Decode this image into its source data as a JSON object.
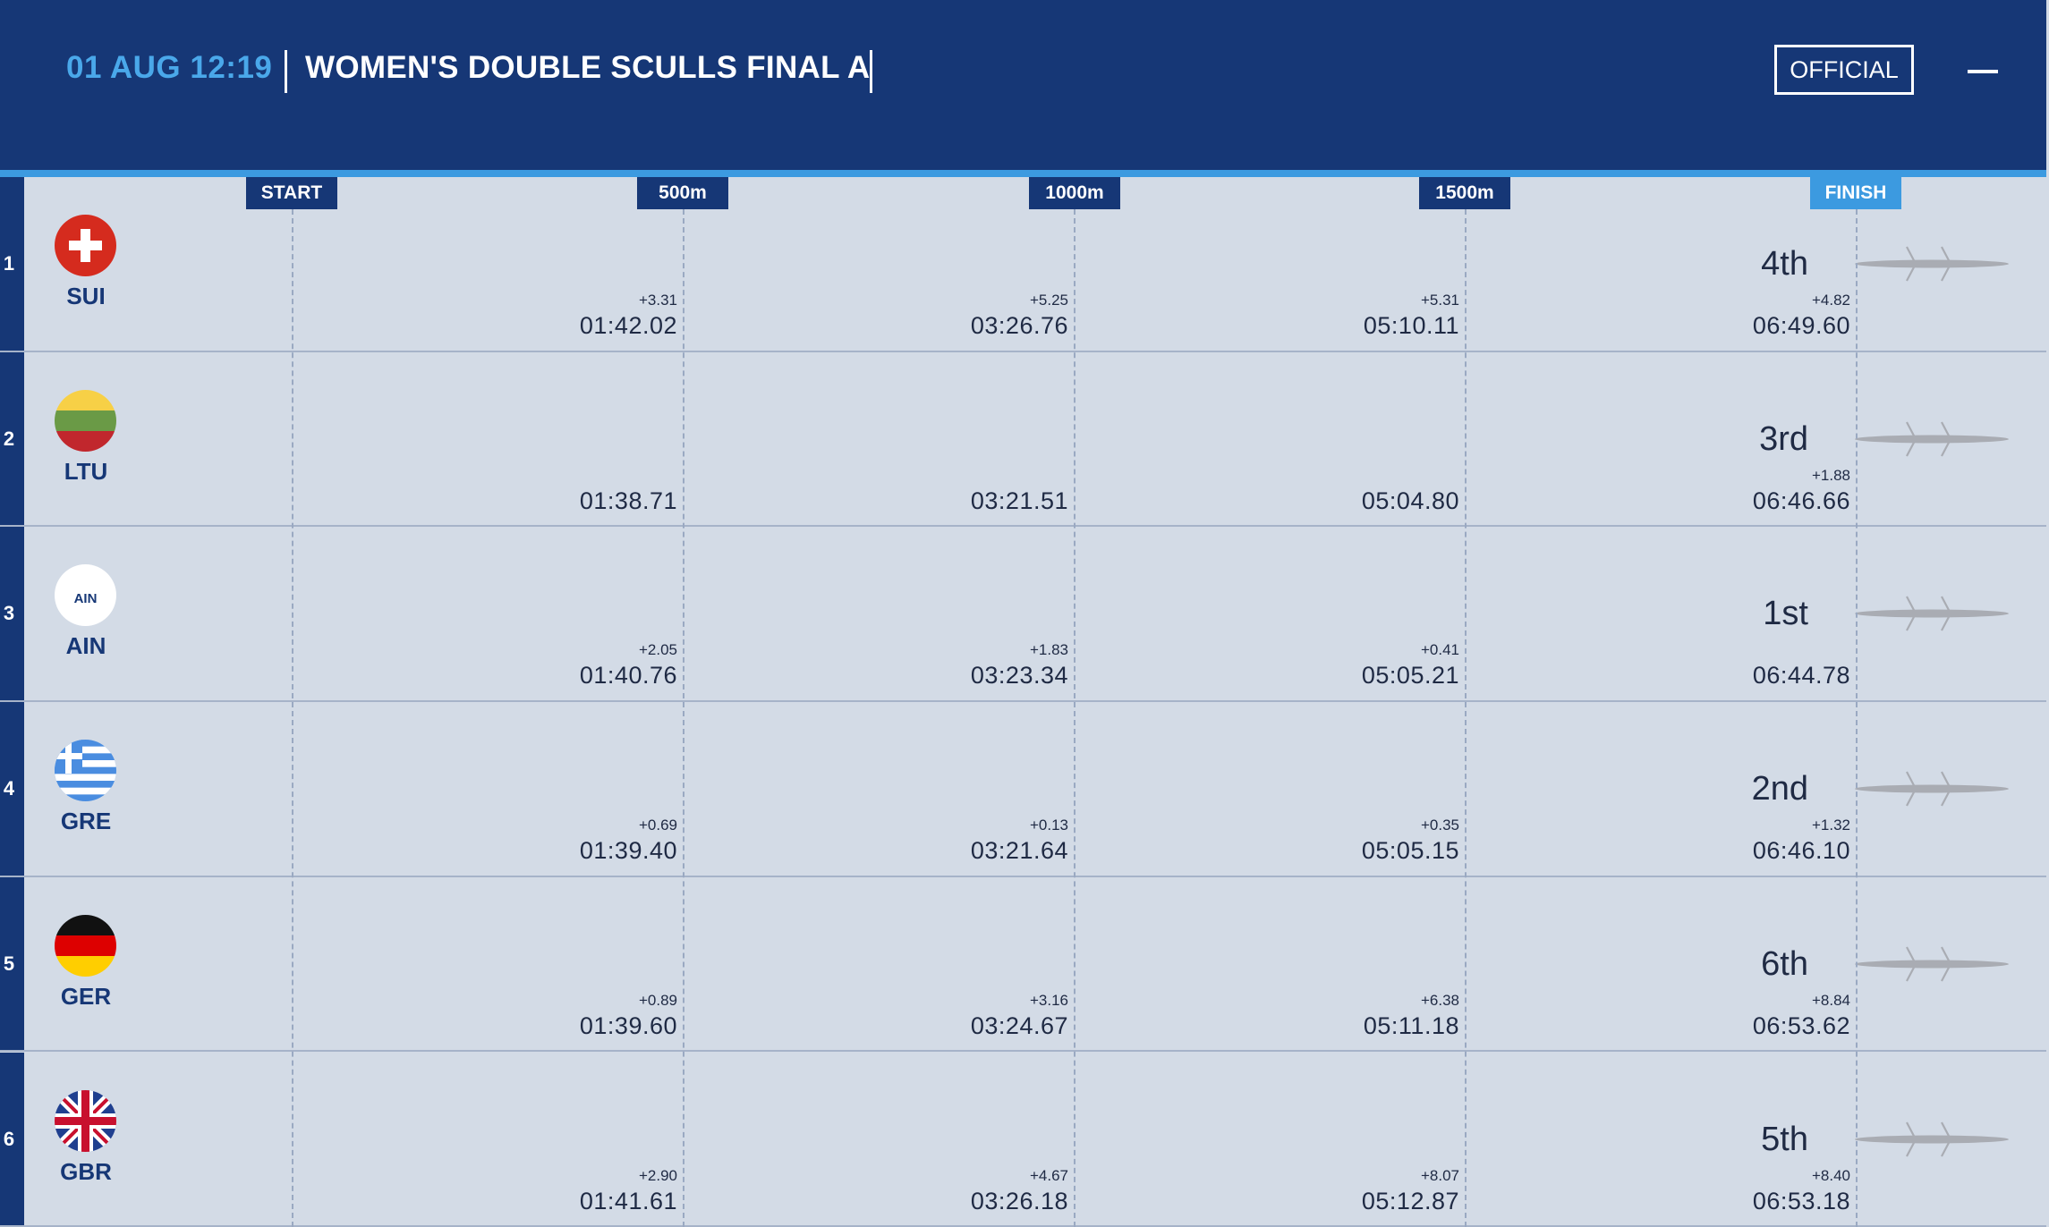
{
  "header": {
    "datetime": "01 AUG 12:19",
    "title": "WOMEN'S DOUBLE SCULLS FINAL A",
    "official_label": "OFFICIAL"
  },
  "markers": [
    "START",
    "500m",
    "1000m",
    "1500m",
    "FINISH"
  ],
  "colors": {
    "header_bg": "#163776",
    "accent": "#3c9ae0",
    "row_bg": "#d3dbe6",
    "text": "#1f2a44"
  },
  "rows": [
    {
      "lane": "1",
      "country": "SUI",
      "flag_icon": "switzerland-flag-icon",
      "splits": [
        {
          "gap": "+3.31",
          "time": "01:42.02"
        },
        {
          "gap": "+5.25",
          "time": "03:26.76"
        },
        {
          "gap": "+5.31",
          "time": "05:10.11"
        },
        {
          "gap": "+4.82",
          "time": "06:49.60"
        }
      ],
      "rank": "4th"
    },
    {
      "lane": "2",
      "country": "LTU",
      "flag_icon": "lithuania-flag-icon",
      "splits": [
        {
          "gap": "",
          "time": "01:38.71"
        },
        {
          "gap": "",
          "time": "03:21.51"
        },
        {
          "gap": "",
          "time": "05:04.80"
        },
        {
          "gap": "+1.88",
          "time": "06:46.66"
        }
      ],
      "rank": "3rd"
    },
    {
      "lane": "3",
      "country": "AIN",
      "flag_icon": "ain-flag-icon",
      "flag_text": "AIN",
      "splits": [
        {
          "gap": "+2.05",
          "time": "01:40.76"
        },
        {
          "gap": "+1.83",
          "time": "03:23.34"
        },
        {
          "gap": "+0.41",
          "time": "05:05.21"
        },
        {
          "gap": "",
          "time": "06:44.78"
        }
      ],
      "rank": "1st"
    },
    {
      "lane": "4",
      "country": "GRE",
      "flag_icon": "greece-flag-icon",
      "splits": [
        {
          "gap": "+0.69",
          "time": "01:39.40"
        },
        {
          "gap": "+0.13",
          "time": "03:21.64"
        },
        {
          "gap": "+0.35",
          "time": "05:05.15"
        },
        {
          "gap": "+1.32",
          "time": "06:46.10"
        }
      ],
      "rank": "2nd"
    },
    {
      "lane": "5",
      "country": "GER",
      "flag_icon": "germany-flag-icon",
      "splits": [
        {
          "gap": "+0.89",
          "time": "01:39.60"
        },
        {
          "gap": "+3.16",
          "time": "03:24.67"
        },
        {
          "gap": "+6.38",
          "time": "05:11.18"
        },
        {
          "gap": "+8.84",
          "time": "06:53.62"
        }
      ],
      "rank": "6th"
    },
    {
      "lane": "6",
      "country": "GBR",
      "flag_icon": "great-britain-flag-icon",
      "splits": [
        {
          "gap": "+2.90",
          "time": "01:41.61"
        },
        {
          "gap": "+4.67",
          "time": "03:26.18"
        },
        {
          "gap": "+8.07",
          "time": "05:12.87"
        },
        {
          "gap": "+8.40",
          "time": "06:53.18"
        }
      ],
      "rank": "5th"
    }
  ]
}
